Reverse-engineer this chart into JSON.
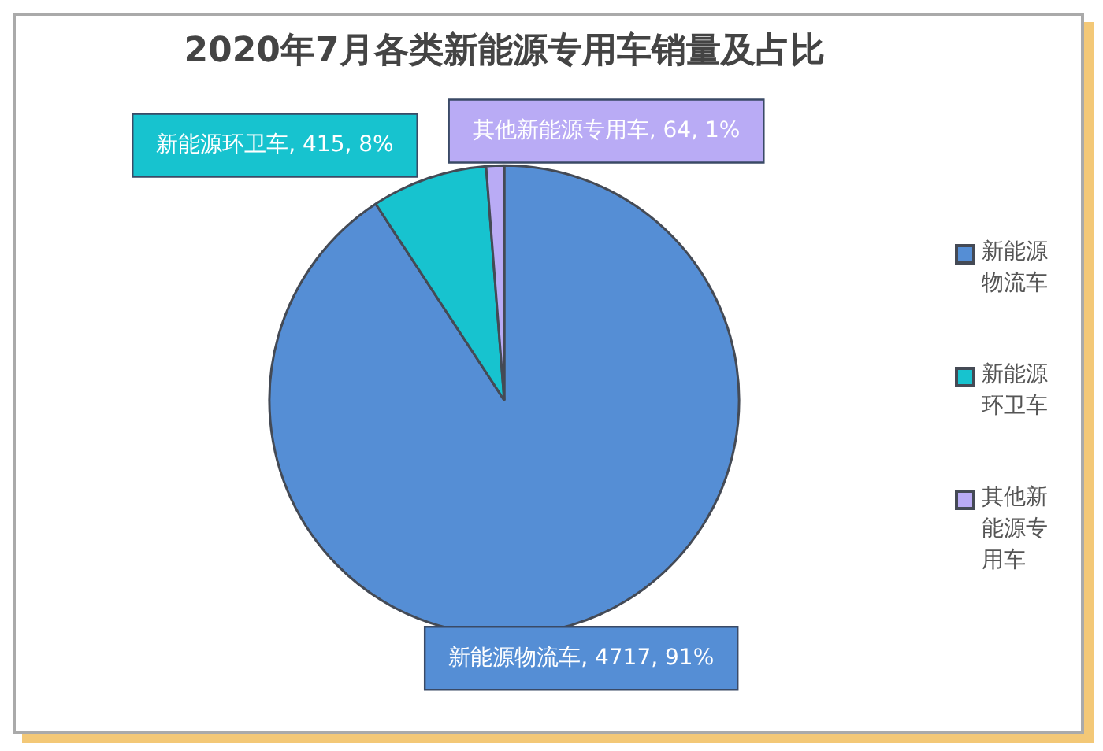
{
  "chart_data": {
    "type": "pie",
    "title": "2020年7月各类新能源专用车销量及占比",
    "categories": [
      "新能源物流车",
      "新能源环卫车",
      "其他新能源专用车"
    ],
    "values": [
      4717,
      415,
      64
    ],
    "colors": [
      "#558ed5",
      "#17c3cf",
      "#b9abf5"
    ],
    "value_labels": [
      "新能源物流车, 4717, 91%",
      "新能源环卫车, 415, 8%",
      "其他新能源专用车, 64, 1%"
    ],
    "legend": "right"
  }
}
